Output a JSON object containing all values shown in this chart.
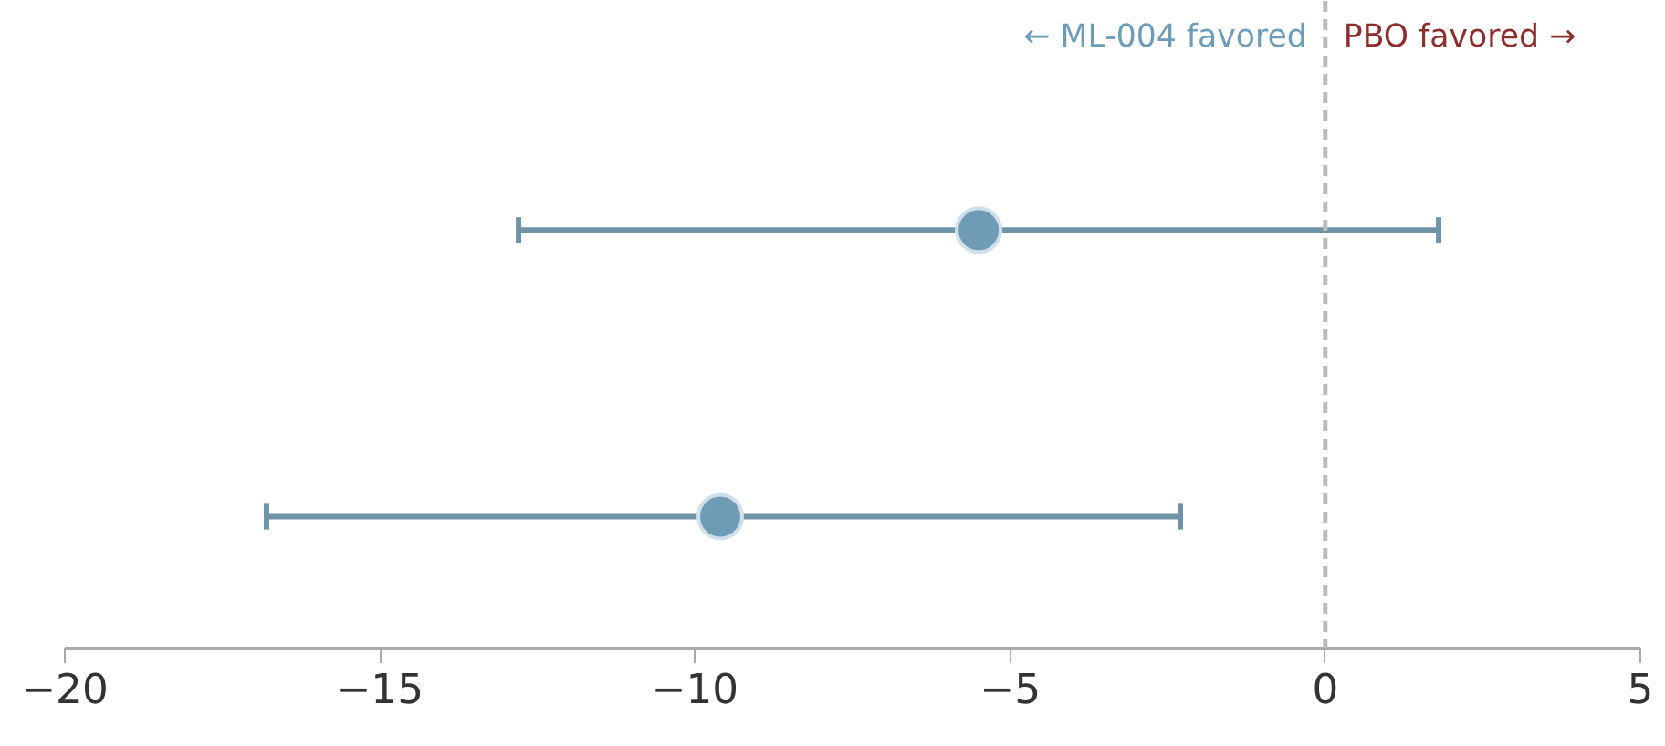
{
  "chart_data": {
    "type": "scatter",
    "orientation": "horizontal",
    "categories": [
      null,
      null
    ],
    "values": [
      -5.5,
      -9.6
    ],
    "errors": [
      [
        -12.8,
        1.8
      ],
      [
        -16.8,
        -2.3
      ]
    ],
    "color": "#6e9bb5",
    "marker": "circle",
    "xlim": [
      -20,
      5
    ],
    "xticks": [
      -20,
      -15,
      -10,
      -5,
      0,
      5
    ],
    "grid": false,
    "ref_lines": [
      {
        "axis": "x",
        "value": 0,
        "color": "#bbbbbb",
        "line_style": "dashed"
      }
    ],
    "annotations": [
      {
        "text": "← ML-004 favored",
        "x": 0
      },
      {
        "text": "PBO favored →",
        "x": 0
      }
    ]
  }
}
